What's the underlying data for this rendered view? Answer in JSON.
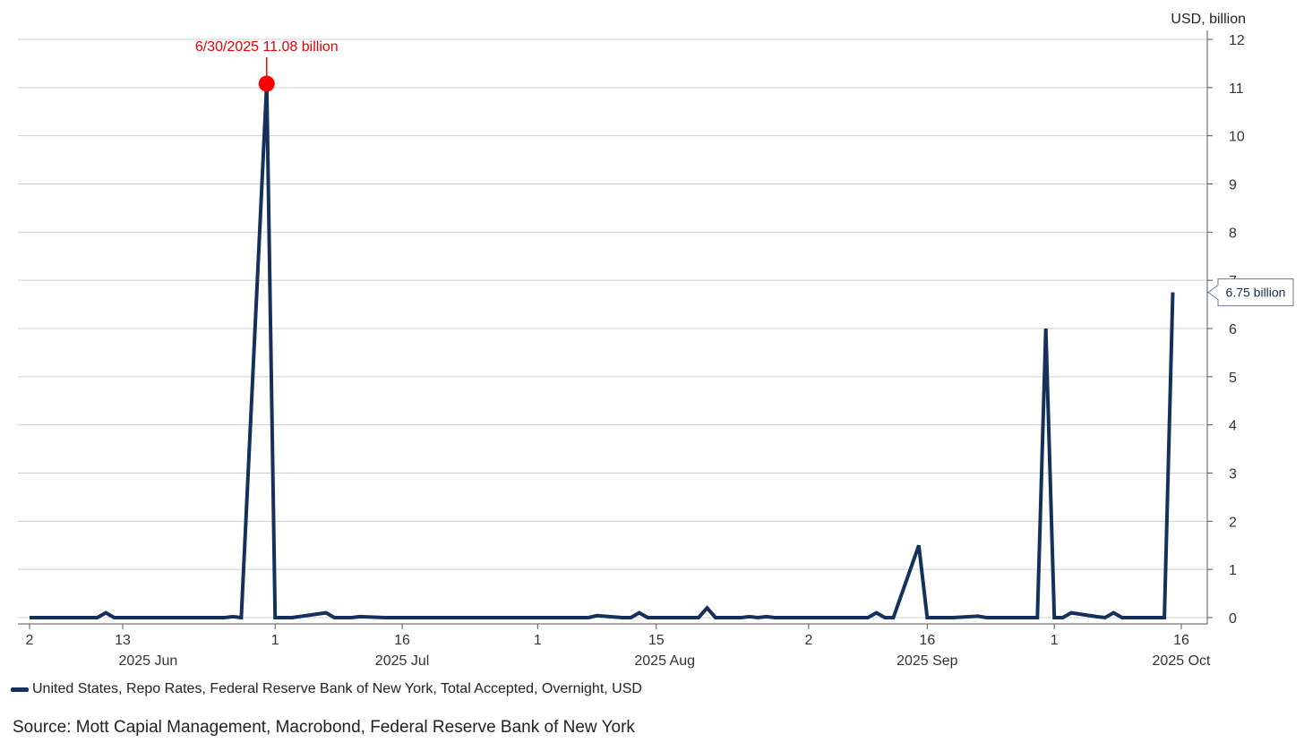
{
  "chart_data": {
    "type": "line",
    "unit_label": "USD, billion",
    "y_ticks": [
      "0",
      "1",
      "2",
      "3",
      "4",
      "5",
      "6",
      "7",
      "8",
      "9",
      "10",
      "11",
      "12"
    ],
    "ylim": [
      0,
      12
    ],
    "x_ticks": [
      {
        "date": "2025-06-02",
        "label": "2"
      },
      {
        "date": "2025-06-13",
        "label": "13"
      },
      {
        "date": "2025-07-01",
        "label": "1"
      },
      {
        "date": "2025-07-16",
        "label": "16"
      },
      {
        "date": "2025-08-01",
        "label": "1"
      },
      {
        "date": "2025-08-15",
        "label": "15"
      },
      {
        "date": "2025-09-02",
        "label": "2"
      },
      {
        "date": "2025-09-16",
        "label": "16"
      },
      {
        "date": "2025-10-01",
        "label": "1"
      },
      {
        "date": "2025-10-16",
        "label": "16"
      }
    ],
    "month_labels": [
      {
        "date": "2025-06-16",
        "label": "2025 Jun"
      },
      {
        "date": "2025-07-16",
        "label": "2025 Jul"
      },
      {
        "date": "2025-08-16",
        "label": "2025 Aug"
      },
      {
        "date": "2025-09-16",
        "label": "2025 Sep"
      },
      {
        "date": "2025-10-16",
        "label": "2025 Oct"
      }
    ],
    "grid": true,
    "series": [
      {
        "name": "United States, Repo Rates, Federal Reserve Bank of New York, Total Accepted, Overnight, USD",
        "color": "#15305a",
        "points": [
          [
            "2025-06-02",
            0
          ],
          [
            "2025-06-03",
            0
          ],
          [
            "2025-06-04",
            0
          ],
          [
            "2025-06-05",
            0
          ],
          [
            "2025-06-06",
            0
          ],
          [
            "2025-06-09",
            0
          ],
          [
            "2025-06-10",
            0
          ],
          [
            "2025-06-11",
            0.1
          ],
          [
            "2025-06-12",
            0
          ],
          [
            "2025-06-13",
            0
          ],
          [
            "2025-06-16",
            0
          ],
          [
            "2025-06-17",
            0
          ],
          [
            "2025-06-18",
            0
          ],
          [
            "2025-06-20",
            0
          ],
          [
            "2025-06-23",
            0
          ],
          [
            "2025-06-24",
            0
          ],
          [
            "2025-06-25",
            0
          ],
          [
            "2025-06-26",
            0.02
          ],
          [
            "2025-06-27",
            0
          ],
          [
            "2025-06-30",
            11.08
          ],
          [
            "2025-07-01",
            0
          ],
          [
            "2025-07-02",
            0
          ],
          [
            "2025-07-03",
            0
          ],
          [
            "2025-07-07",
            0.1
          ],
          [
            "2025-07-08",
            0
          ],
          [
            "2025-07-09",
            0
          ],
          [
            "2025-07-10",
            0
          ],
          [
            "2025-07-11",
            0.02
          ],
          [
            "2025-07-14",
            0
          ],
          [
            "2025-07-15",
            0
          ],
          [
            "2025-07-16",
            0
          ],
          [
            "2025-07-17",
            0
          ],
          [
            "2025-07-18",
            0
          ],
          [
            "2025-07-21",
            0
          ],
          [
            "2025-07-22",
            0
          ],
          [
            "2025-07-23",
            0
          ],
          [
            "2025-07-24",
            0
          ],
          [
            "2025-07-25",
            0
          ],
          [
            "2025-07-28",
            0
          ],
          [
            "2025-07-29",
            0
          ],
          [
            "2025-07-30",
            0
          ],
          [
            "2025-07-31",
            0
          ],
          [
            "2025-08-01",
            0
          ],
          [
            "2025-08-04",
            0
          ],
          [
            "2025-08-05",
            0
          ],
          [
            "2025-08-06",
            0
          ],
          [
            "2025-08-07",
            0
          ],
          [
            "2025-08-08",
            0.04
          ],
          [
            "2025-08-11",
            0
          ],
          [
            "2025-08-12",
            0
          ],
          [
            "2025-08-13",
            0.1
          ],
          [
            "2025-08-14",
            0
          ],
          [
            "2025-08-15",
            0
          ],
          [
            "2025-08-18",
            0
          ],
          [
            "2025-08-19",
            0
          ],
          [
            "2025-08-20",
            0
          ],
          [
            "2025-08-21",
            0.2
          ],
          [
            "2025-08-22",
            0
          ],
          [
            "2025-08-25",
            0
          ],
          [
            "2025-08-26",
            0.02
          ],
          [
            "2025-08-27",
            0
          ],
          [
            "2025-08-28",
            0.02
          ],
          [
            "2025-08-29",
            0
          ],
          [
            "2025-09-02",
            0
          ],
          [
            "2025-09-03",
            0
          ],
          [
            "2025-09-04",
            0
          ],
          [
            "2025-09-05",
            0
          ],
          [
            "2025-09-08",
            0
          ],
          [
            "2025-09-09",
            0
          ],
          [
            "2025-09-10",
            0.1
          ],
          [
            "2025-09-11",
            0
          ],
          [
            "2025-09-12",
            0
          ],
          [
            "2025-09-15",
            1.5
          ],
          [
            "2025-09-16",
            0
          ],
          [
            "2025-09-17",
            0
          ],
          [
            "2025-09-18",
            0
          ],
          [
            "2025-09-19",
            0
          ],
          [
            "2025-09-22",
            0.03
          ],
          [
            "2025-09-23",
            0
          ],
          [
            "2025-09-24",
            0
          ],
          [
            "2025-09-25",
            0
          ],
          [
            "2025-09-26",
            0
          ],
          [
            "2025-09-29",
            0
          ],
          [
            "2025-09-30",
            6.0
          ],
          [
            "2025-10-01",
            0
          ],
          [
            "2025-10-02",
            0
          ],
          [
            "2025-10-03",
            0.1
          ],
          [
            "2025-10-06",
            0.02
          ],
          [
            "2025-10-07",
            0
          ],
          [
            "2025-10-08",
            0.1
          ],
          [
            "2025-10-09",
            0
          ],
          [
            "2025-10-10",
            0
          ],
          [
            "2025-10-14",
            0
          ],
          [
            "2025-10-15",
            6.75
          ]
        ]
      }
    ],
    "annotations": {
      "peak": {
        "date": "2025-06-30",
        "value": 11.08,
        "text": "6/30/2025 11.08 billion",
        "color": "#ff0000"
      },
      "last_value": {
        "date": "2025-10-15",
        "value": 6.75,
        "text": "6.75 billion"
      }
    }
  },
  "legend": {
    "label": "United States, Repo Rates, Federal Reserve Bank of New York, Total Accepted, Overnight, USD"
  },
  "source": "Source: Mott Capial Management, Macrobond, Federal Reserve Bank of New York"
}
